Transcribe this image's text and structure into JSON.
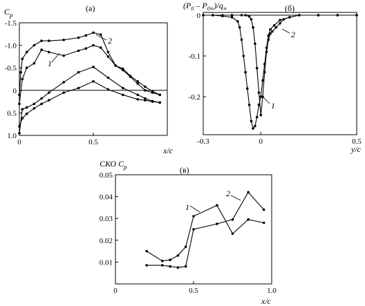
{
  "chart_data": [
    {
      "id": "a",
      "type": "line",
      "panel_label": "(а)",
      "ylabel": "C",
      "ylabel_sub": "p",
      "xlabel": "x/c",
      "xlim": [
        0,
        1
      ],
      "ylim": [
        1.0,
        -1.5
      ],
      "y_inverted": true,
      "x_ticks": [
        "0",
        "0.5"
      ],
      "y_ticks": [
        "-1.5",
        "-1.0",
        "-0.5",
        "0",
        "0.5",
        "1.0"
      ],
      "zero_line": true,
      "series": [
        {
          "name": "1",
          "upper": {
            "x": [
              0.0,
              0.02,
              0.05,
              0.1,
              0.15,
              0.2,
              0.3,
              0.4,
              0.45,
              0.5,
              0.55,
              0.6,
              0.65,
              0.7,
              0.75,
              0.8,
              0.85,
              0.9,
              0.95
            ],
            "y": [
              0.3,
              -0.25,
              -0.5,
              -0.6,
              -0.9,
              -0.85,
              -0.77,
              -0.88,
              -0.93,
              -1.0,
              -0.95,
              -0.75,
              -0.55,
              -0.45,
              -0.3,
              -0.15,
              0.0,
              0.05,
              0.1
            ]
          },
          "lower": {
            "x": [
              0.0,
              0.02,
              0.05,
              0.1,
              0.15,
              0.2,
              0.3,
              0.4,
              0.5,
              0.6,
              0.7,
              0.8,
              0.85,
              0.9,
              0.95
            ],
            "y": [
              0.8,
              0.62,
              0.52,
              0.4,
              0.3,
              0.22,
              0.05,
              -0.05,
              -0.2,
              -0.02,
              0.1,
              0.2,
              0.22,
              0.25,
              0.27
            ]
          }
        },
        {
          "name": "2",
          "upper": {
            "x": [
              0.0,
              0.01,
              0.02,
              0.05,
              0.1,
              0.15,
              0.2,
              0.3,
              0.4,
              0.45,
              0.5,
              0.55,
              0.6,
              0.65,
              0.7,
              0.75,
              0.8,
              0.85,
              0.9,
              0.95
            ],
            "y": [
              0.1,
              -0.4,
              -0.7,
              -0.85,
              -1.0,
              -1.1,
              -1.1,
              -1.12,
              -1.17,
              -1.22,
              -1.28,
              -1.24,
              -0.85,
              -0.55,
              -0.48,
              -0.32,
              -0.2,
              -0.08,
              0.02,
              0.1
            ]
          },
          "lower": {
            "x": [
              0.0,
              0.02,
              0.05,
              0.1,
              0.15,
              0.2,
              0.3,
              0.4,
              0.5,
              0.6,
              0.7,
              0.8,
              0.85,
              0.9,
              0.95
            ],
            "y": [
              0.95,
              0.42,
              0.38,
              0.3,
              0.18,
              0.05,
              -0.18,
              -0.4,
              -0.52,
              -0.28,
              -0.05,
              0.1,
              0.18,
              0.24,
              0.27
            ]
          }
        }
      ]
    },
    {
      "id": "b",
      "type": "line",
      "panel_label": "(б)",
      "ylabel": "(P0 – P0∞)/q∞",
      "xlabel": "y/c",
      "xlim": [
        -0.3,
        0.5
      ],
      "ylim": [
        -0.3,
        0.0
      ],
      "x_ticks": [
        "-0.3",
        "0",
        "0.5"
      ],
      "y_ticks": [
        "0",
        "-0.1",
        "-0.2"
      ],
      "series": [
        {
          "name": "1",
          "x": [
            -0.3,
            -0.25,
            -0.2,
            -0.15,
            -0.12,
            -0.11,
            -0.1,
            -0.09,
            -0.08,
            -0.07,
            -0.06,
            -0.05,
            -0.04,
            -0.03,
            -0.02,
            -0.01,
            0.0,
            0.01,
            0.02,
            0.03,
            0.04,
            0.05,
            0.07,
            0.1,
            0.15,
            0.2,
            0.3,
            0.4,
            0.5
          ],
          "y": [
            0.0,
            0.0,
            -0.002,
            -0.005,
            -0.015,
            -0.03,
            -0.06,
            -0.1,
            -0.14,
            -0.18,
            -0.22,
            -0.26,
            -0.278,
            -0.272,
            -0.25,
            -0.22,
            -0.2,
            -0.16,
            -0.12,
            -0.08,
            -0.05,
            -0.035,
            -0.025,
            -0.012,
            -0.005,
            0.0,
            0.0,
            0.0,
            0.0
          ]
        },
        {
          "name": "2",
          "x": [
            -0.3,
            -0.25,
            -0.2,
            -0.15,
            -0.1,
            -0.08,
            -0.06,
            -0.05,
            -0.04,
            -0.03,
            -0.02,
            -0.01,
            0.0,
            0.01,
            0.02,
            0.03,
            0.04,
            0.05,
            0.06,
            0.08,
            0.1,
            0.12,
            0.15,
            0.2,
            0.3,
            0.4,
            0.5
          ],
          "y": [
            0.0,
            0.0,
            0.0,
            0.0,
            0.0,
            0.0,
            -0.003,
            -0.01,
            -0.03,
            -0.07,
            -0.13,
            -0.19,
            -0.245,
            -0.2,
            -0.14,
            -0.09,
            -0.06,
            -0.045,
            -0.04,
            -0.03,
            -0.02,
            -0.01,
            -0.005,
            0.0,
            0.0,
            0.0,
            0.0
          ]
        }
      ]
    },
    {
      "id": "v",
      "type": "line",
      "panel_label": "(в)",
      "ylabel": "СКО C",
      "ylabel_sub": "p",
      "xlabel": "x/c",
      "xlim": [
        0,
        1.0
      ],
      "ylim": [
        0,
        0.05
      ],
      "x_ticks": [
        "0",
        "0.5",
        "1.0"
      ],
      "y_ticks": [
        "0.01",
        "0.02",
        "0.03",
        "0.04",
        "0.05"
      ],
      "series": [
        {
          "name": "1",
          "x": [
            0.2,
            0.3,
            0.35,
            0.4,
            0.45,
            0.5,
            0.65,
            0.75,
            0.85,
            0.95
          ],
          "y": [
            0.015,
            0.0105,
            0.011,
            0.013,
            0.017,
            0.031,
            0.036,
            0.023,
            0.0295,
            0.028
          ]
        },
        {
          "name": "2",
          "x": [
            0.2,
            0.3,
            0.35,
            0.4,
            0.45,
            0.5,
            0.65,
            0.75,
            0.85,
            0.95
          ],
          "y": [
            0.0085,
            0.0085,
            0.008,
            0.0075,
            0.008,
            0.025,
            0.0275,
            0.0295,
            0.042,
            0.034
          ]
        }
      ]
    }
  ]
}
